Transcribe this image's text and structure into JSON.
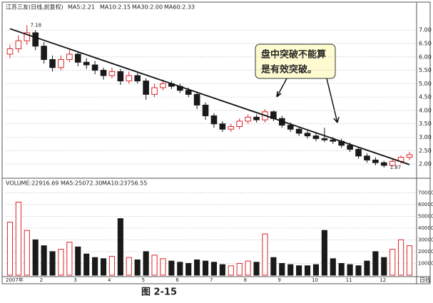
{
  "chart_data": {
    "type": "candlestick",
    "title": "江苏三友(日线,前复权)",
    "ma_texts": [
      {
        "text": "MA5:2.21",
        "color": "#c0392b"
      },
      {
        "text": "MA10:2.15",
        "color": "#333333"
      },
      {
        "text": "MA30:2.00",
        "color": "#333333"
      },
      {
        "text": "MA60:2.33",
        "color": "#333333"
      }
    ],
    "annotation": [
      "盘中突破不能算",
      "是有效突破。"
    ],
    "categories": [
      "2007年",
      null,
      null,
      null,
      "2",
      null,
      null,
      null,
      "3",
      null,
      null,
      null,
      "4",
      null,
      null,
      null,
      "5",
      null,
      null,
      null,
      "6",
      null,
      null,
      null,
      "7",
      null,
      null,
      null,
      "8",
      null,
      null,
      null,
      "9",
      null,
      null,
      null,
      "10",
      null,
      null,
      null,
      "11",
      null,
      null,
      null,
      "12",
      null,
      null,
      null
    ],
    "period_label": "日线",
    "up_color": "#d9262a",
    "down_color": "#1a1a1a",
    "candles": {
      "open": [
        6.1,
        6.3,
        6.6,
        6.9,
        6.4,
        5.9,
        5.6,
        5.9,
        6.1,
        5.8,
        5.7,
        5.5,
        5.3,
        5.45,
        5.1,
        5.3,
        5.1,
        4.6,
        4.85,
        5.0,
        4.9,
        4.75,
        4.6,
        4.2,
        3.8,
        3.5,
        3.3,
        3.4,
        3.6,
        3.75,
        3.65,
        3.95,
        3.7,
        3.45,
        3.3,
        3.15,
        3.05,
        2.95,
        2.9,
        2.85,
        2.7,
        2.55,
        2.3,
        2.15,
        2.05,
        1.95,
        2.1,
        2.25
      ],
      "high": [
        6.45,
        6.8,
        7.18,
        7.0,
        6.55,
        6.05,
        6.05,
        6.3,
        6.2,
        5.95,
        5.85,
        5.6,
        5.6,
        5.55,
        5.45,
        5.4,
        5.2,
        5.0,
        5.15,
        5.1,
        5.0,
        4.85,
        4.7,
        4.3,
        3.9,
        3.6,
        3.5,
        3.7,
        3.85,
        3.85,
        4.05,
        4.0,
        3.8,
        3.55,
        3.4,
        3.25,
        3.15,
        3.35,
        3.0,
        2.95,
        2.8,
        2.65,
        2.4,
        2.25,
        2.12,
        2.18,
        2.32,
        2.45
      ],
      "low": [
        5.95,
        6.15,
        6.45,
        6.25,
        5.75,
        5.45,
        5.5,
        5.8,
        5.65,
        5.55,
        5.35,
        5.15,
        5.2,
        4.95,
        5.0,
        5.0,
        4.4,
        4.5,
        4.75,
        4.8,
        4.65,
        4.5,
        4.05,
        3.65,
        3.35,
        3.2,
        3.2,
        3.3,
        3.5,
        3.55,
        3.55,
        3.6,
        3.35,
        3.2,
        3.05,
        2.95,
        2.85,
        2.82,
        2.75,
        2.6,
        2.45,
        2.2,
        2.05,
        1.95,
        1.87,
        1.9,
        2.02,
        2.15
      ],
      "close": [
        6.3,
        6.6,
        6.9,
        6.4,
        5.9,
        5.6,
        5.9,
        6.1,
        5.8,
        5.7,
        5.5,
        5.3,
        5.45,
        5.1,
        5.3,
        5.1,
        4.6,
        4.85,
        5.0,
        4.9,
        4.75,
        4.6,
        4.2,
        3.8,
        3.5,
        3.3,
        3.4,
        3.6,
        3.75,
        3.65,
        3.95,
        3.7,
        3.45,
        3.3,
        3.15,
        3.05,
        2.95,
        2.9,
        2.85,
        2.7,
        2.55,
        2.3,
        2.15,
        2.05,
        1.95,
        2.1,
        2.25,
        2.35
      ]
    },
    "ylim": [
      1.55,
      7.75
    ],
    "yticks": [
      {
        "value": 7,
        "label": "7.00"
      },
      {
        "value": 6.5,
        "label": "6.50"
      },
      {
        "value": 6,
        "label": "6.00"
      },
      {
        "value": 5.5,
        "label": "5.50"
      },
      {
        "value": 5,
        "label": "5.00"
      },
      {
        "value": 4.5,
        "label": "4.50"
      },
      {
        "value": 4,
        "label": "4.00"
      },
      {
        "value": 3.5,
        "label": "3.50"
      },
      {
        "value": 3,
        "label": "3.00"
      },
      {
        "value": 2.5,
        "label": "2.50"
      },
      {
        "value": 2,
        "label": "2.00"
      }
    ],
    "trend_line": {
      "start": 7.05,
      "end": 1.98
    },
    "volume": {
      "header": "VOLUME:22916.69",
      "ma_texts": [
        "MA5:25072.30",
        "MA10:23756.55"
      ],
      "values": [
        45000,
        62000,
        38000,
        30000,
        25000,
        20000,
        22000,
        28000,
        24000,
        18000,
        15000,
        14000,
        16000,
        48000,
        15000,
        13000,
        20000,
        17000,
        14000,
        12000,
        11000,
        10000,
        13000,
        12000,
        11000,
        9000,
        8000,
        10000,
        12000,
        11000,
        35000,
        15000,
        10000,
        9000,
        8000,
        8000,
        9000,
        38000,
        14000,
        10000,
        9000,
        8000,
        12000,
        20000,
        15000,
        22000,
        30000,
        25000
      ],
      "ylim": [
        0,
        75000
      ],
      "yticks": [
        70000,
        60000,
        50000,
        40000,
        30000,
        20000,
        10000
      ]
    },
    "caption": "图 2-15"
  }
}
